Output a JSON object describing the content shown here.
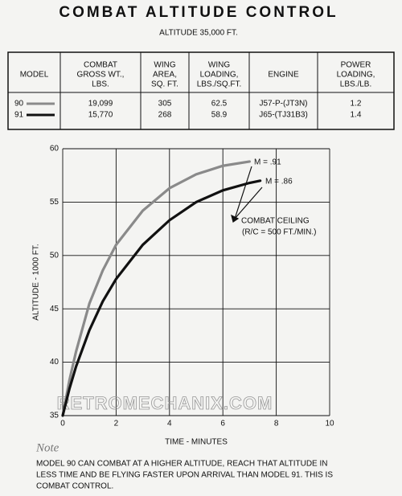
{
  "header": {
    "title": "COMBAT ALTITUDE CONTROL",
    "subtitle": "ALTITUDE 35,000 FT."
  },
  "table": {
    "columns": [
      [
        "MODEL"
      ],
      [
        "COMBAT",
        "GROSS WT.,",
        "LBS."
      ],
      [
        "WING",
        "AREA,",
        "SQ. FT."
      ],
      [
        "WING",
        "LOADING,",
        "LBS./SQ.FT."
      ],
      [
        "ENGINE"
      ],
      [
        "POWER",
        "LOADING,",
        "LBS./LB."
      ]
    ],
    "rows": [
      [
        "90",
        "19,099",
        "305",
        "62.5",
        "J57-P-(JT3N)",
        "1.2"
      ],
      [
        "91",
        "15,770",
        "268",
        "58.9",
        "J65-(TJ31B3)",
        "1.4"
      ]
    ]
  },
  "chart_data": {
    "type": "line",
    "x_label": "TIME - MINUTES",
    "y_label": "ALTITUDE - 1000 FT.",
    "xlim": [
      0,
      10
    ],
    "xticks": [
      0,
      2,
      4,
      6,
      8,
      10
    ],
    "ylim": [
      35,
      60
    ],
    "yticks": [
      35,
      40,
      45,
      50,
      55,
      60
    ],
    "grid": true,
    "series": [
      {
        "color": "#8a8a8a",
        "x": [
          0,
          0.25,
          0.5,
          1,
          1.5,
          2,
          3,
          4,
          5,
          6,
          7
        ],
        "values": [
          35,
          38.3,
          41,
          45.5,
          48.6,
          51,
          54.2,
          56.3,
          57.6,
          58.4,
          58.8
        ]
      },
      {
        "color": "#111111",
        "x": [
          0,
          0.25,
          0.5,
          1,
          1.5,
          2,
          3,
          4,
          5,
          6,
          7,
          7.4
        ],
        "values": [
          35,
          37.5,
          39.6,
          43,
          45.7,
          47.8,
          51,
          53.3,
          55,
          56.1,
          56.8,
          57
        ]
      }
    ],
    "annotations": [
      "M = .91",
      "M = .86",
      "COMBAT CEILING",
      "(R/C = 500 FT./MIN.)"
    ],
    "watermark": "RETROMECHANIX.COM"
  },
  "note": {
    "heading": "Note",
    "lines": [
      "MODEL 90 CAN COMBAT AT A HIGHER ALTITUDE, REACH THAT ALTITUDE IN",
      "LESS TIME AND BE FLYING FASTER UPON ARRIVAL THAN MODEL 91.  THIS IS",
      "COMBAT CONTROL."
    ]
  }
}
